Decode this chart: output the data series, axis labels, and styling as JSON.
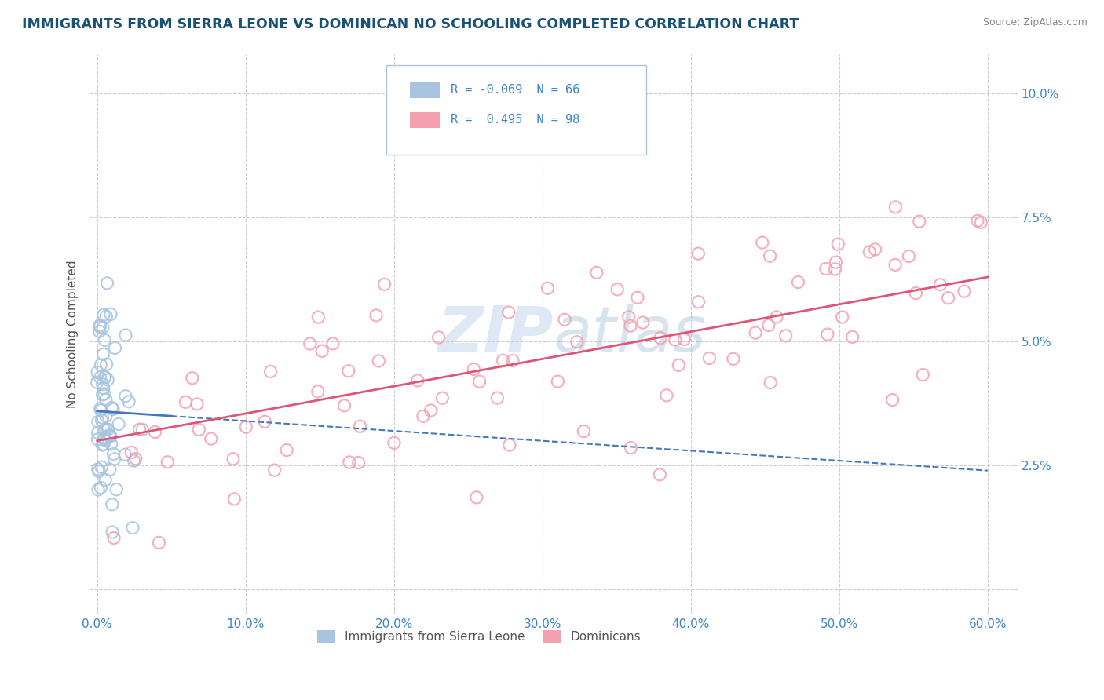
{
  "title": "IMMIGRANTS FROM SIERRA LEONE VS DOMINICAN NO SCHOOLING COMPLETED CORRELATION CHART",
  "source_text": "Source: ZipAtlas.com",
  "ylabel": "No Schooling Completed",
  "xlim": [
    -0.005,
    0.62
  ],
  "ylim": [
    -0.005,
    0.108
  ],
  "xticks": [
    0.0,
    0.1,
    0.2,
    0.3,
    0.4,
    0.5,
    0.6
  ],
  "xticklabels": [
    "0.0%",
    "10.0%",
    "20.0%",
    "30.0%",
    "40.0%",
    "50.0%",
    "60.0%"
  ],
  "yticks": [
    0.0,
    0.025,
    0.05,
    0.075,
    0.1
  ],
  "yticklabels": [
    "",
    "2.5%",
    "5.0%",
    "7.5%",
    "10.0%"
  ],
  "color_sierra": "#a8c4e0",
  "color_dominican": "#f4a0b0",
  "color_sierra_line": "#4477bb",
  "color_dominican_line": "#dd5577",
  "background_color": "#ffffff",
  "grid_color": "#cccccc",
  "title_color": "#1a5276",
  "tick_color": "#3d85c8",
  "legend_label1": "Immigrants from Sierra Leone",
  "legend_label2": "Dominicans",
  "legend_r1": "-0.069",
  "legend_n1": "66",
  "legend_r2": "0.495",
  "legend_n2": "98",
  "sierra_line_x0": 0.0,
  "sierra_line_x1": 0.6,
  "sierra_line_y0": 0.036,
  "sierra_line_y1": 0.024,
  "sierra_line_solid_end": 0.05,
  "dominican_line_x0": 0.0,
  "dominican_line_x1": 0.6,
  "dominican_line_y0": 0.03,
  "dominican_line_y1": 0.063
}
